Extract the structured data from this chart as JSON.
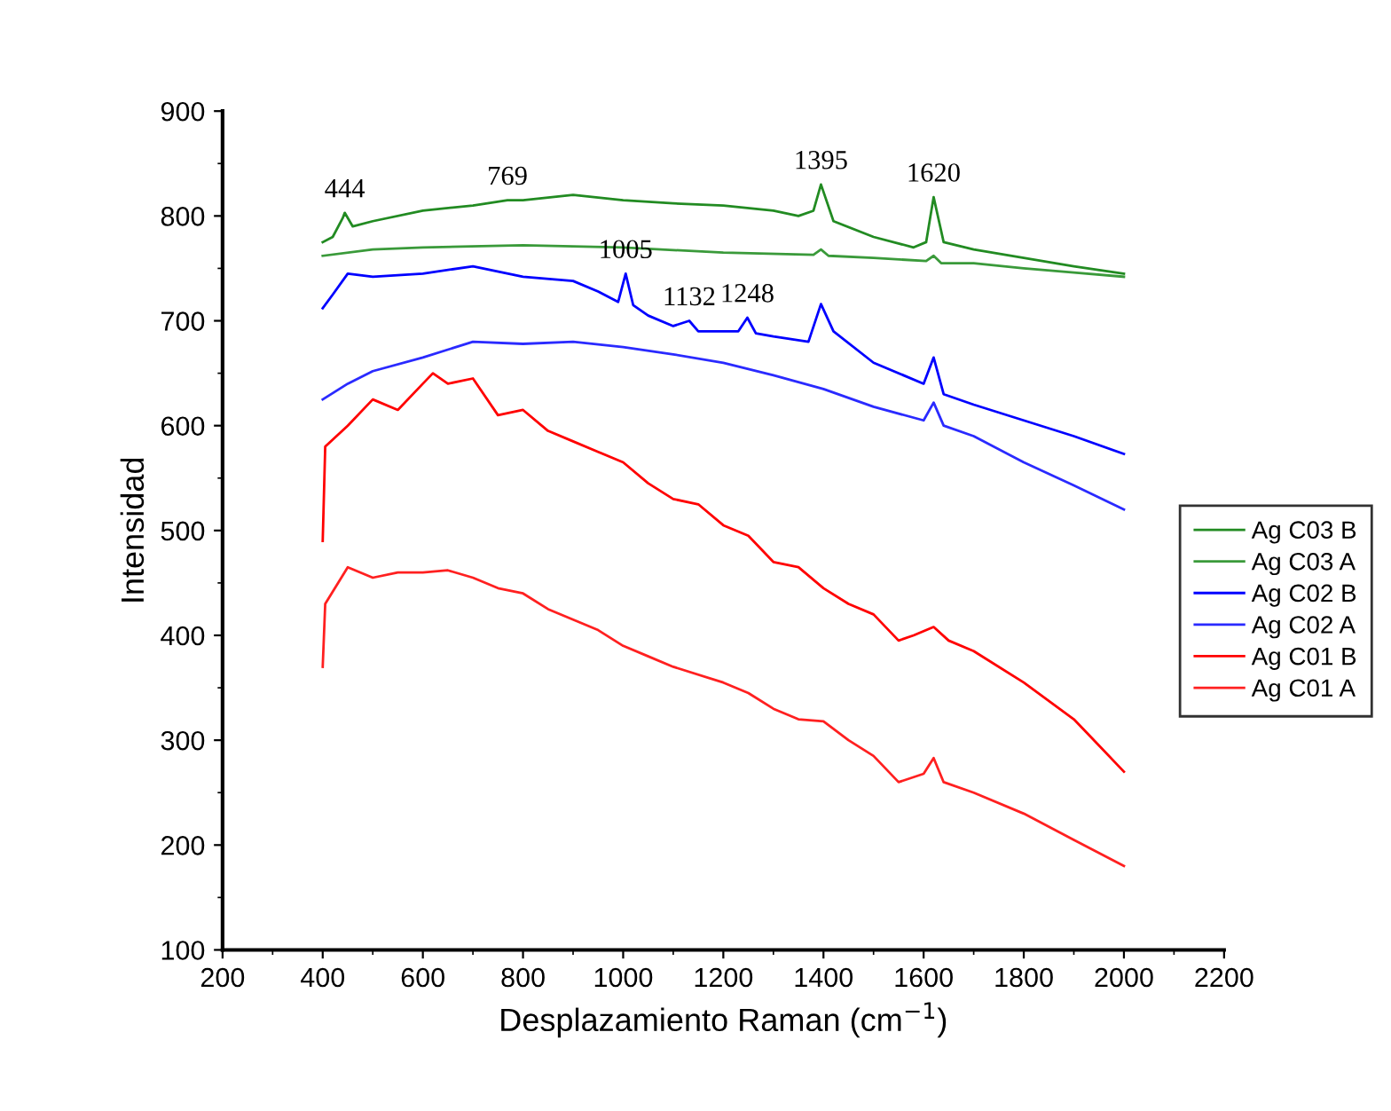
{
  "chart_data": {
    "type": "line",
    "xlabel": "Desplazamiento Raman (cm$^{−1}$)",
    "ylabel": "Intensidad",
    "xlim": [
      200,
      2200
    ],
    "xticks": [
      200,
      400,
      600,
      800,
      1000,
      1200,
      1400,
      1600,
      1800,
      2000,
      2200
    ],
    "ylim": [
      100,
      900
    ],
    "yticks": [
      100,
      200,
      300,
      400,
      500,
      600,
      700,
      800,
      900
    ],
    "grid": false,
    "legend": "right",
    "line_style": "solid",
    "marker": "none",
    "series": [
      {
        "name": "Ag C03 B",
        "color": "#228b22",
        "x": [
          400,
          420,
          440,
          444,
          460,
          500,
          600,
          700,
          769,
          800,
          900,
          1000,
          1100,
          1200,
          1300,
          1350,
          1380,
          1395,
          1420,
          1500,
          1580,
          1605,
          1620,
          1640,
          1700,
          1800,
          1900,
          2000
        ],
        "values": [
          775,
          780,
          798,
          803,
          790,
          795,
          805,
          810,
          815,
          815,
          820,
          815,
          812,
          810,
          805,
          800,
          805,
          830,
          795,
          780,
          770,
          775,
          818,
          775,
          768,
          760,
          752,
          745
        ]
      },
      {
        "name": "Ag C03 A",
        "color": "#3a9a3a",
        "x": [
          400,
          500,
          600,
          800,
          1000,
          1200,
          1380,
          1395,
          1410,
          1500,
          1605,
          1620,
          1635,
          1700,
          1800,
          1900,
          2000
        ],
        "values": [
          762,
          768,
          770,
          772,
          770,
          765,
          763,
          768,
          762,
          760,
          757,
          762,
          755,
          755,
          750,
          746,
          742
        ]
      },
      {
        "name": "Ag C02 B",
        "color": "#0000ff",
        "x": [
          400,
          420,
          450,
          500,
          600,
          700,
          800,
          900,
          950,
          990,
          1005,
          1020,
          1050,
          1100,
          1132,
          1150,
          1200,
          1230,
          1248,
          1265,
          1300,
          1370,
          1395,
          1420,
          1500,
          1600,
          1620,
          1640,
          1700,
          1800,
          1900,
          2000
        ],
        "values": [
          712,
          725,
          745,
          742,
          745,
          752,
          742,
          738,
          728,
          718,
          745,
          715,
          705,
          695,
          700,
          690,
          690,
          690,
          703,
          688,
          685,
          680,
          716,
          690,
          660,
          640,
          665,
          630,
          620,
          605,
          590,
          573
        ]
      },
      {
        "name": "Ag C02 A",
        "color": "#2a2aff",
        "x": [
          400,
          450,
          500,
          600,
          700,
          800,
          900,
          1000,
          1100,
          1200,
          1300,
          1400,
          1500,
          1600,
          1620,
          1640,
          1700,
          1800,
          1900,
          2000
        ],
        "values": [
          625,
          640,
          652,
          665,
          680,
          678,
          680,
          675,
          668,
          660,
          648,
          635,
          618,
          605,
          622,
          600,
          590,
          565,
          543,
          520
        ]
      },
      {
        "name": "Ag C01 B",
        "color": "#ff0000",
        "x": [
          400,
          405,
          450,
          500,
          550,
          600,
          620,
          650,
          700,
          750,
          800,
          850,
          900,
          950,
          1000,
          1050,
          1100,
          1150,
          1200,
          1250,
          1300,
          1350,
          1400,
          1450,
          1500,
          1550,
          1580,
          1620,
          1650,
          1700,
          1800,
          1900,
          1950,
          2000
        ],
        "values": [
          490,
          580,
          600,
          625,
          615,
          640,
          650,
          640,
          645,
          610,
          615,
          595,
          585,
          575,
          565,
          545,
          530,
          525,
          505,
          495,
          470,
          465,
          445,
          430,
          420,
          395,
          400,
          408,
          395,
          385,
          355,
          320,
          295,
          270
        ]
      },
      {
        "name": "Ag C01 A",
        "color": "#ff2020",
        "x": [
          400,
          405,
          450,
          500,
          550,
          600,
          650,
          700,
          750,
          800,
          850,
          900,
          950,
          1000,
          1050,
          1100,
          1200,
          1250,
          1300,
          1350,
          1400,
          1450,
          1500,
          1550,
          1600,
          1620,
          1640,
          1700,
          1800,
          1900,
          2000
        ],
        "values": [
          370,
          430,
          465,
          455,
          460,
          460,
          462,
          455,
          445,
          440,
          425,
          415,
          405,
          390,
          380,
          370,
          355,
          345,
          330,
          320,
          318,
          300,
          285,
          260,
          268,
          283,
          260,
          250,
          230,
          205,
          180
        ]
      }
    ],
    "annotations": [
      {
        "text": "444",
        "x": 444,
        "y": 803
      },
      {
        "text": "769",
        "x": 769,
        "y": 815
      },
      {
        "text": "1395",
        "x": 1395,
        "y": 830
      },
      {
        "text": "1620",
        "x": 1620,
        "y": 818
      },
      {
        "text": "1005",
        "x": 1005,
        "y": 745
      },
      {
        "text": "1248",
        "x": 1248,
        "y": 703
      },
      {
        "text": "1132",
        "x": 1132,
        "y": 700
      }
    ]
  }
}
